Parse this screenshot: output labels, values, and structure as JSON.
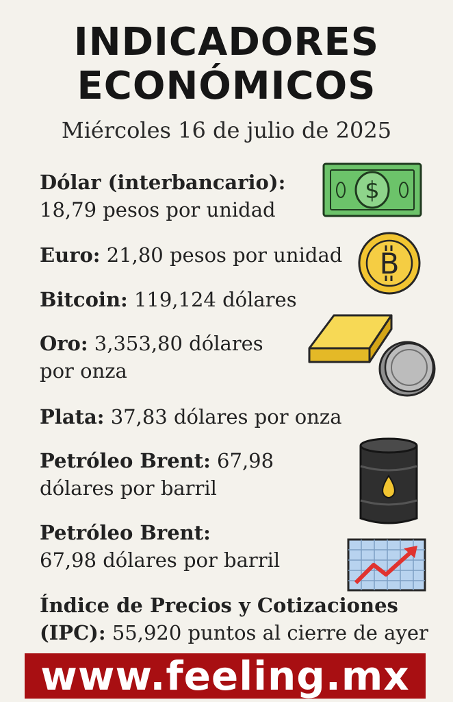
{
  "header": {
    "title_line1": "INDICADORES",
    "title_line2": "ECONÓMICOS",
    "date": "Miércoles 16 de julio de 2025"
  },
  "items": [
    {
      "label": "Dólar (interbancario):",
      "value_line1": "",
      "value_line2": "18,79 pesos por unidad",
      "icon": "dollar-bill-icon"
    },
    {
      "label": "Euro:",
      "value_line1": " 21,80 pesos por unidad",
      "icon": "bitcoin-coin-icon"
    },
    {
      "label": "Bitcoin:",
      "value_line1": " 119,124 dólares"
    },
    {
      "label": "Oro:",
      "value_line1": " 3,353,80 dólares",
      "value_line2": "por onza",
      "icon": "gold-bar-icon"
    },
    {
      "label": "Plata:",
      "value_line1": " 37,83 dólares por onza",
      "icon": "silver-coin-icon"
    },
    {
      "label": "Petróleo Brent:",
      "value_line1": " 67,98",
      "value_line2": "dólares por barril",
      "icon": "oil-barrel-icon"
    },
    {
      "label": "Petróleo Brent:",
      "value_line1": "",
      "value_line2": "67,98 dólares por barril",
      "icon": "rising-chart-icon"
    },
    {
      "label": "Índice de Precios y Cotizaciones",
      "label2": "(IPC):",
      "value_line2": " 55,920 puntos al cierre de ayer"
    }
  ],
  "footer": {
    "website": "www.feeling.mx"
  },
  "colors": {
    "banner": "#a80f12",
    "dollar": "#6cc36a",
    "gold": "#f2c531",
    "silver": "#a9a9a9",
    "oil": "#2b2b2b",
    "chart_line": "#e0332f",
    "chart_bg": "#b8d3ef"
  }
}
